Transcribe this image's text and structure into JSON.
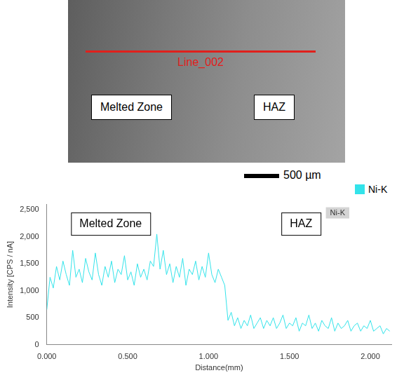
{
  "image": {
    "line_label": "Line_002",
    "labels": [
      "Melted Zone",
      "HAZ"
    ],
    "scale_bar": "500 µm"
  },
  "chart_data": {
    "type": "line",
    "xlabel": "Distance(mm)",
    "ylabel": "Intensity [CPS / nA]",
    "annotations": [
      "Melted Zone",
      "HAZ"
    ],
    "grid": false,
    "legend": "top right",
    "xlim": [
      0,
      2.13
    ],
    "ylim": [
      0,
      2600
    ],
    "xticks": [
      {
        "value": 0,
        "label": "0.000"
      },
      {
        "value": 0.5,
        "label": "0.500"
      },
      {
        "value": 1,
        "label": "1.000"
      },
      {
        "value": 1.5,
        "label": "1.500"
      },
      {
        "value": 2,
        "label": "2.000"
      }
    ],
    "yticks": [
      0,
      500,
      {
        "value": 1000,
        "label": "1,000"
      },
      {
        "value": 1500,
        "label": "1,500"
      },
      {
        "value": 2000,
        "label": "2,000"
      },
      {
        "value": 2500,
        "label": "2,500"
      }
    ],
    "x": [
      0,
      0.02,
      0.04,
      0.06,
      0.08,
      0.1,
      0.12,
      0.14,
      0.16,
      0.18,
      0.2,
      0.22,
      0.24,
      0.26,
      0.28,
      0.3,
      0.32,
      0.34,
      0.36,
      0.38,
      0.4,
      0.42,
      0.44,
      0.46,
      0.48,
      0.5,
      0.52,
      0.54,
      0.56,
      0.58,
      0.6,
      0.62,
      0.64,
      0.66,
      0.68,
      0.7,
      0.72,
      0.74,
      0.76,
      0.78,
      0.8,
      0.82,
      0.84,
      0.86,
      0.88,
      0.9,
      0.92,
      0.94,
      0.96,
      0.98,
      1,
      1.02,
      1.04,
      1.06,
      1.08,
      1.1,
      1.12,
      1.14,
      1.16,
      1.18,
      1.2,
      1.22,
      1.24,
      1.26,
      1.28,
      1.3,
      1.32,
      1.34,
      1.36,
      1.38,
      1.4,
      1.42,
      1.44,
      1.46,
      1.48,
      1.5,
      1.52,
      1.54,
      1.56,
      1.58,
      1.6,
      1.62,
      1.64,
      1.66,
      1.68,
      1.7,
      1.72,
      1.74,
      1.76,
      1.78,
      1.8,
      1.82,
      1.84,
      1.86,
      1.88,
      1.9,
      1.92,
      1.94,
      1.96,
      1.98,
      2,
      2.02,
      2.04,
      2.06,
      2.08,
      2.1,
      2.12
    ],
    "series": [
      {
        "name": "Ni-K",
        "color": "#33e3ea",
        "values": [
          650,
          1250,
          1050,
          1450,
          1200,
          1550,
          1300,
          1100,
          1750,
          1250,
          1400,
          1150,
          1600,
          1350,
          1200,
          1700,
          1300,
          1100,
          1450,
          1250,
          1550,
          1150,
          1400,
          1300,
          1650,
          1200,
          1350,
          1100,
          1500,
          1250,
          1400,
          1200,
          1550,
          1450,
          2050,
          1400,
          1750,
          1300,
          1500,
          1150,
          1450,
          1250,
          1600,
          1100,
          1400,
          1300,
          1550,
          1200,
          1450,
          1250,
          1700,
          1300,
          1150,
          1400,
          1250,
          1100,
          450,
          600,
          350,
          500,
          300,
          450,
          350,
          550,
          300,
          400,
          500,
          300,
          450,
          350,
          500,
          300,
          400,
          550,
          300,
          400,
          350,
          500,
          250,
          400,
          350,
          550,
          300,
          400,
          250,
          450,
          350,
          300,
          500,
          250,
          400,
          300,
          350,
          450,
          250,
          350,
          400,
          250,
          350,
          300,
          450,
          250,
          300,
          350,
          200,
          300,
          250
        ]
      }
    ]
  }
}
